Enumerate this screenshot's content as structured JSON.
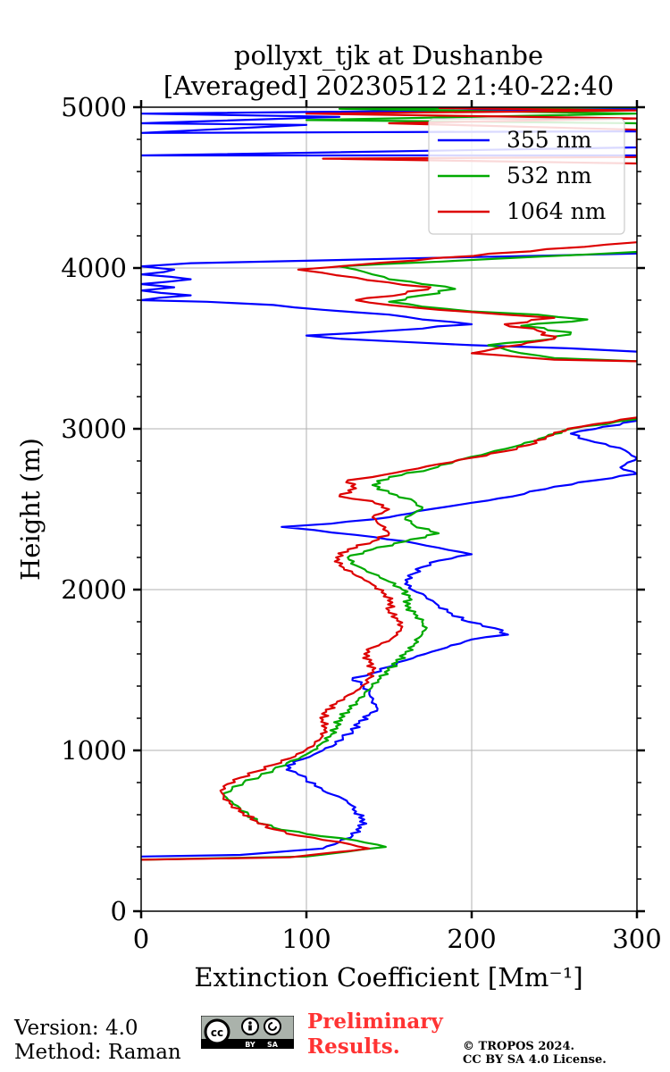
{
  "chart_data": {
    "type": "line",
    "title_line1": "pollyxt_tjk at Dushanbe",
    "title_line2": "[Averaged] 20230512 21:40-22:40",
    "xlabel": "Extinction Coefficient [Mm⁻¹]",
    "ylabel": "Height (m)",
    "xlim": [
      0,
      300
    ],
    "ylim": [
      0,
      5000
    ],
    "xticks": [
      0,
      100,
      200,
      300
    ],
    "xtick_labels": [
      "0",
      "100",
      "200",
      "300"
    ],
    "yticks": [
      0,
      1000,
      2000,
      3000,
      4000,
      5000
    ],
    "ytick_labels": [
      "0",
      "1000",
      "2000",
      "3000",
      "4000",
      "5000"
    ],
    "grid": true,
    "legend_position": "top-right",
    "series": [
      {
        "name": "355 nm",
        "color": "#0000ff",
        "points": [
          [
            0,
            340
          ],
          [
            60,
            350
          ],
          [
            110,
            390
          ],
          [
            120,
            430
          ],
          [
            128,
            470
          ],
          [
            133,
            520
          ],
          [
            135,
            570
          ],
          [
            130,
            620
          ],
          [
            127,
            660
          ],
          [
            122,
            700
          ],
          [
            110,
            750
          ],
          [
            105,
            780
          ],
          [
            100,
            820
          ],
          [
            95,
            850
          ],
          [
            88,
            880
          ],
          [
            92,
            930
          ],
          [
            102,
            960
          ],
          [
            110,
            1000
          ],
          [
            118,
            1040
          ],
          [
            122,
            1080
          ],
          [
            128,
            1120
          ],
          [
            132,
            1170
          ],
          [
            138,
            1220
          ],
          [
            143,
            1260
          ],
          [
            140,
            1310
          ],
          [
            138,
            1360
          ],
          [
            133,
            1410
          ],
          [
            128,
            1450
          ],
          [
            140,
            1480
          ],
          [
            150,
            1520
          ],
          [
            160,
            1560
          ],
          [
            172,
            1600
          ],
          [
            185,
            1640
          ],
          [
            200,
            1690
          ],
          [
            222,
            1720
          ],
          [
            214,
            1760
          ],
          [
            198,
            1800
          ],
          [
            188,
            1850
          ],
          [
            180,
            1900
          ],
          [
            172,
            1960
          ],
          [
            162,
            2010
          ],
          [
            160,
            2060
          ],
          [
            165,
            2100
          ],
          [
            170,
            2140
          ],
          [
            180,
            2180
          ],
          [
            200,
            2220
          ],
          [
            180,
            2260
          ],
          [
            160,
            2300
          ],
          [
            130,
            2340
          ],
          [
            105,
            2370
          ],
          [
            85,
            2390
          ],
          [
            115,
            2410
          ],
          [
            150,
            2450
          ],
          [
            175,
            2500
          ],
          [
            200,
            2540
          ],
          [
            225,
            2580
          ],
          [
            235,
            2610
          ],
          [
            250,
            2640
          ],
          [
            275,
            2680
          ],
          [
            300,
            2720
          ],
          [
            290,
            2760
          ],
          [
            300,
            2820
          ],
          [
            290,
            2880
          ],
          [
            270,
            2930
          ],
          [
            260,
            2970
          ],
          [
            275,
            3000
          ],
          [
            300,
            3050
          ]
        ],
        "upper_points": [
          [
            300,
            3480
          ],
          [
            260,
            3500
          ],
          [
            200,
            3520
          ],
          [
            160,
            3540
          ],
          [
            120,
            3560
          ],
          [
            100,
            3580
          ],
          [
            150,
            3610
          ],
          [
            200,
            3650
          ],
          [
            170,
            3680
          ],
          [
            150,
            3710
          ],
          [
            110,
            3740
          ],
          [
            80,
            3770
          ],
          [
            40,
            3790
          ],
          [
            0,
            3800
          ],
          [
            30,
            3830
          ],
          [
            0,
            3860
          ],
          [
            20,
            3880
          ],
          [
            0,
            3900
          ],
          [
            30,
            3930
          ],
          [
            0,
            3960
          ],
          [
            20,
            3990
          ],
          [
            0,
            4010
          ],
          [
            30,
            4030
          ],
          [
            300,
            4090
          ]
        ],
        "top_points": [
          [
            300,
            4700
          ],
          [
            0,
            4700
          ],
          [
            300,
            4750
          ],
          [
            300,
            4850
          ],
          [
            0,
            4840
          ],
          [
            100,
            4890
          ],
          [
            0,
            4900
          ],
          [
            120,
            4940
          ],
          [
            0,
            4960
          ],
          [
            300,
            4990
          ]
        ]
      },
      {
        "name": "532 nm",
        "color": "#00aa00",
        "points": [
          [
            0,
            320
          ],
          [
            100,
            340
          ],
          [
            148,
            400
          ],
          [
            130,
            440
          ],
          [
            100,
            480
          ],
          [
            80,
            520
          ],
          [
            70,
            560
          ],
          [
            65,
            600
          ],
          [
            60,
            640
          ],
          [
            55,
            680
          ],
          [
            50,
            720
          ],
          [
            55,
            760
          ],
          [
            62,
            800
          ],
          [
            72,
            840
          ],
          [
            80,
            880
          ],
          [
            88,
            920
          ],
          [
            97,
            960
          ],
          [
            104,
            1000
          ],
          [
            110,
            1050
          ],
          [
            115,
            1100
          ],
          [
            118,
            1150
          ],
          [
            120,
            1200
          ],
          [
            125,
            1250
          ],
          [
            130,
            1300
          ],
          [
            135,
            1350
          ],
          [
            140,
            1400
          ],
          [
            145,
            1450
          ],
          [
            150,
            1500
          ],
          [
            155,
            1550
          ],
          [
            160,
            1600
          ],
          [
            165,
            1650
          ],
          [
            168,
            1700
          ],
          [
            172,
            1750
          ],
          [
            170,
            1800
          ],
          [
            165,
            1850
          ],
          [
            160,
            1900
          ],
          [
            162,
            1950
          ],
          [
            158,
            2000
          ],
          [
            150,
            2050
          ],
          [
            140,
            2100
          ],
          [
            130,
            2150
          ],
          [
            125,
            2200
          ],
          [
            140,
            2250
          ],
          [
            160,
            2300
          ],
          [
            180,
            2350
          ],
          [
            165,
            2400
          ],
          [
            160,
            2450
          ],
          [
            170,
            2500
          ],
          [
            165,
            2550
          ],
          [
            150,
            2600
          ],
          [
            140,
            2650
          ],
          [
            150,
            2700
          ],
          [
            175,
            2750
          ],
          [
            190,
            2800
          ],
          [
            210,
            2850
          ],
          [
            230,
            2900
          ],
          [
            245,
            2950
          ],
          [
            260,
            3000
          ],
          [
            300,
            3060
          ]
        ],
        "upper_points": [
          [
            300,
            3420
          ],
          [
            250,
            3440
          ],
          [
            230,
            3470
          ],
          [
            210,
            3520
          ],
          [
            250,
            3560
          ],
          [
            260,
            3600
          ],
          [
            230,
            3640
          ],
          [
            270,
            3680
          ],
          [
            240,
            3710
          ],
          [
            200,
            3730
          ],
          [
            170,
            3760
          ],
          [
            150,
            3790
          ],
          [
            170,
            3830
          ],
          [
            190,
            3870
          ],
          [
            170,
            3900
          ],
          [
            150,
            3930
          ],
          [
            140,
            3960
          ],
          [
            130,
            3990
          ],
          [
            120,
            4010
          ],
          [
            300,
            4100
          ]
        ],
        "top_points": [
          [
            300,
            4650
          ],
          [
            300,
            4700
          ],
          [
            300,
            4900
          ],
          [
            100,
            4920
          ],
          [
            300,
            4960
          ],
          [
            120,
            4990
          ],
          [
            300,
            5000
          ]
        ]
      },
      {
        "name": "1064 nm",
        "color": "#dd0000",
        "points": [
          [
            0,
            320
          ],
          [
            90,
            335
          ],
          [
            138,
            390
          ],
          [
            120,
            430
          ],
          [
            95,
            470
          ],
          [
            80,
            510
          ],
          [
            70,
            560
          ],
          [
            62,
            610
          ],
          [
            55,
            660
          ],
          [
            50,
            710
          ],
          [
            48,
            750
          ],
          [
            52,
            790
          ],
          [
            60,
            830
          ],
          [
            70,
            870
          ],
          [
            80,
            910
          ],
          [
            90,
            950
          ],
          [
            98,
            990
          ],
          [
            105,
            1040
          ],
          [
            110,
            1090
          ],
          [
            112,
            1140
          ],
          [
            110,
            1190
          ],
          [
            112,
            1240
          ],
          [
            118,
            1290
          ],
          [
            123,
            1330
          ],
          [
            130,
            1370
          ],
          [
            135,
            1410
          ],
          [
            138,
            1450
          ],
          [
            140,
            1500
          ],
          [
            138,
            1550
          ],
          [
            135,
            1600
          ],
          [
            140,
            1640
          ],
          [
            150,
            1680
          ],
          [
            155,
            1720
          ],
          [
            158,
            1770
          ],
          [
            155,
            1820
          ],
          [
            150,
            1870
          ],
          [
            152,
            1920
          ],
          [
            148,
            1970
          ],
          [
            142,
            2020
          ],
          [
            135,
            2060
          ],
          [
            128,
            2100
          ],
          [
            120,
            2150
          ],
          [
            118,
            2200
          ],
          [
            125,
            2250
          ],
          [
            140,
            2300
          ],
          [
            150,
            2350
          ],
          [
            145,
            2400
          ],
          [
            140,
            2450
          ],
          [
            150,
            2500
          ],
          [
            140,
            2550
          ],
          [
            120,
            2580
          ],
          [
            130,
            2630
          ],
          [
            125,
            2680
          ],
          [
            140,
            2700
          ],
          [
            160,
            2740
          ],
          [
            180,
            2780
          ],
          [
            200,
            2820
          ],
          [
            220,
            2860
          ],
          [
            235,
            2900
          ],
          [
            245,
            2950
          ],
          [
            258,
            3000
          ],
          [
            300,
            3070
          ]
        ],
        "upper_points": [
          [
            300,
            3420
          ],
          [
            250,
            3430
          ],
          [
            200,
            3470
          ],
          [
            220,
            3510
          ],
          [
            250,
            3560
          ],
          [
            240,
            3610
          ],
          [
            220,
            3650
          ],
          [
            250,
            3690
          ],
          [
            220,
            3710
          ],
          [
            180,
            3740
          ],
          [
            150,
            3770
          ],
          [
            130,
            3800
          ],
          [
            160,
            3840
          ],
          [
            175,
            3880
          ],
          [
            150,
            3910
          ],
          [
            130,
            3940
          ],
          [
            110,
            3970
          ],
          [
            95,
            3990
          ],
          [
            300,
            4160
          ]
        ],
        "top_points": [
          [
            300,
            4650
          ],
          [
            110,
            4680
          ],
          [
            300,
            4690
          ],
          [
            300,
            4860
          ],
          [
            150,
            4900
          ],
          [
            300,
            4930
          ],
          [
            100,
            4960
          ],
          [
            300,
            4980
          ],
          [
            180,
            4995
          ]
        ]
      }
    ]
  },
  "footer": {
    "version": "Version: 4.0",
    "method": "Method: Raman",
    "license_badge_alt": "cc by sa",
    "cc_by": "BY",
    "cc_sa": "SA",
    "preliminary_line1": "Preliminary",
    "preliminary_line2": "Results.",
    "copyright_line1": "© TROPOS 2024.",
    "copyright_line2": "CC BY SA 4.0 License."
  }
}
